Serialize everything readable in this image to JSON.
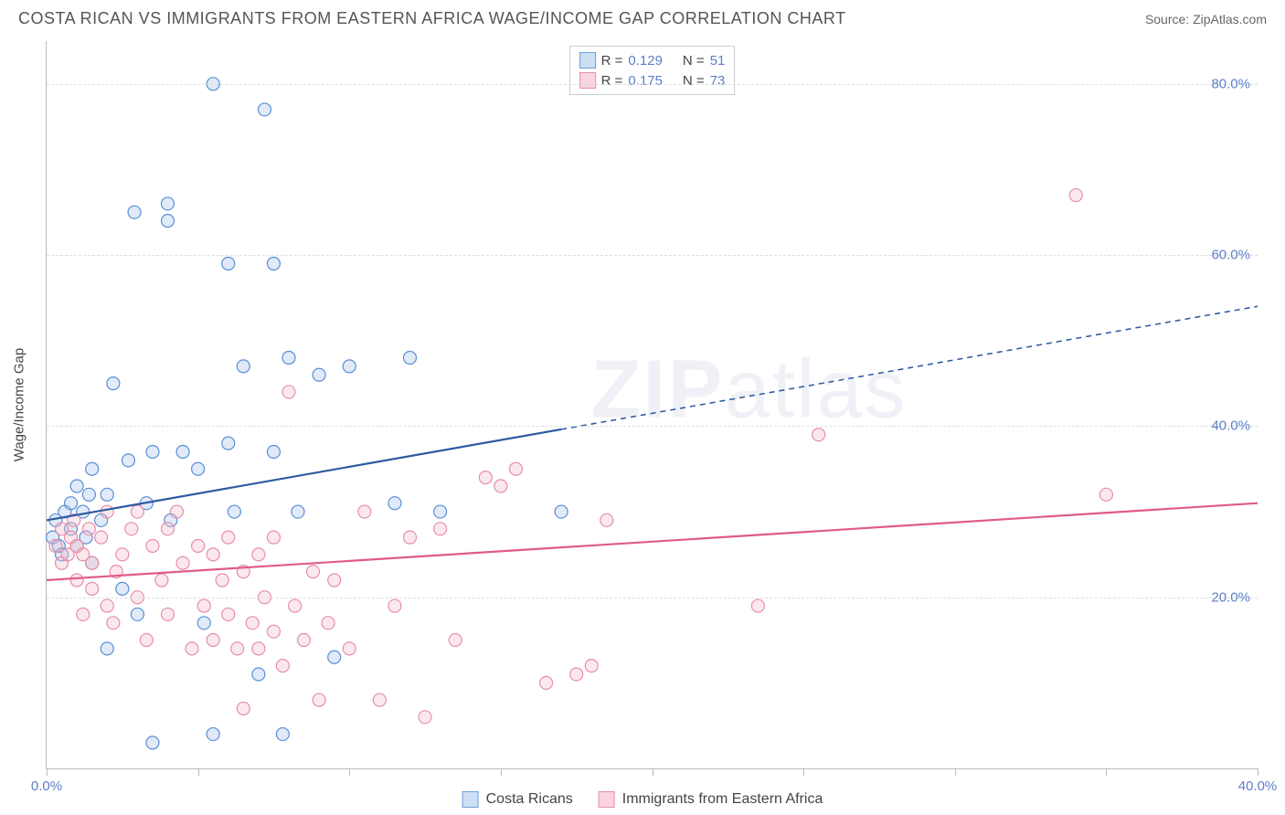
{
  "header": {
    "title": "COSTA RICAN VS IMMIGRANTS FROM EASTERN AFRICA WAGE/INCOME GAP CORRELATION CHART",
    "source_label": "Source: ",
    "source_value": "ZipAtlas.com"
  },
  "watermark": {
    "bold": "ZIP",
    "thin": "atlas"
  },
  "chart": {
    "type": "scatter",
    "y_axis_label": "Wage/Income Gap",
    "xlim": [
      0,
      40
    ],
    "ylim": [
      0,
      85
    ],
    "x_ticks": [
      0,
      5,
      10,
      15,
      20,
      25,
      30,
      35,
      40
    ],
    "x_tick_labels": {
      "0": "0.0%",
      "40": "40.0%"
    },
    "y_gridlines": [
      20,
      40,
      60,
      80
    ],
    "y_tick_labels": {
      "20": "20.0%",
      "40": "40.0%",
      "60": "60.0%",
      "80": "80.0%"
    },
    "background_color": "#ffffff",
    "grid_color": "#dddddd",
    "axis_color": "#bbbbbb",
    "marker_radius": 7,
    "marker_stroke_width": 1.2,
    "marker_fill_opacity": 0.35,
    "series": [
      {
        "id": "costa_ricans",
        "label": "Costa Ricans",
        "color_stroke": "#5b8fd6",
        "color_fill": "#a7c4ea",
        "swatch_fill": "#cddff4",
        "swatch_border": "#6f9fd8",
        "R": "0.129",
        "N": "51",
        "trend": {
          "x1": 0,
          "y1": 29,
          "x2": 40,
          "y2": 54,
          "solid_until_x": 17,
          "line_color": "#2c5aa0",
          "line_width": 2.2
        },
        "points": [
          [
            0.2,
            27
          ],
          [
            0.3,
            29
          ],
          [
            0.4,
            26
          ],
          [
            0.5,
            25
          ],
          [
            0.6,
            30
          ],
          [
            0.8,
            31
          ],
          [
            0.8,
            28
          ],
          [
            1.0,
            33
          ],
          [
            1.0,
            26
          ],
          [
            1.2,
            30
          ],
          [
            1.3,
            27
          ],
          [
            1.4,
            32
          ],
          [
            1.5,
            24
          ],
          [
            1.5,
            35
          ],
          [
            1.8,
            29
          ],
          [
            2.0,
            14
          ],
          [
            2.0,
            32
          ],
          [
            2.2,
            45
          ],
          [
            2.5,
            21
          ],
          [
            2.7,
            36
          ],
          [
            2.9,
            65
          ],
          [
            3.0,
            18
          ],
          [
            3.3,
            31
          ],
          [
            3.5,
            37
          ],
          [
            3.5,
            3
          ],
          [
            4.0,
            64
          ],
          [
            4.0,
            66
          ],
          [
            4.1,
            29
          ],
          [
            4.5,
            37
          ],
          [
            5.0,
            35
          ],
          [
            5.2,
            17
          ],
          [
            5.5,
            80
          ],
          [
            5.5,
            4
          ],
          [
            6.0,
            38
          ],
          [
            6.0,
            59
          ],
          [
            6.2,
            30
          ],
          [
            6.5,
            47
          ],
          [
            7.0,
            11
          ],
          [
            7.2,
            77
          ],
          [
            7.5,
            37
          ],
          [
            7.8,
            4
          ],
          [
            7.5,
            59
          ],
          [
            8.0,
            48
          ],
          [
            8.3,
            30
          ],
          [
            9.0,
            46
          ],
          [
            9.5,
            13
          ],
          [
            10.0,
            47
          ],
          [
            11.5,
            31
          ],
          [
            12.0,
            48
          ],
          [
            13.0,
            30
          ],
          [
            17.0,
            30
          ]
        ]
      },
      {
        "id": "immigrants_ea",
        "label": "Immigrants from Eastern Africa",
        "color_stroke": "#e68fa8",
        "color_fill": "#f3bccc",
        "swatch_fill": "#f9d4de",
        "swatch_border": "#e68fa8",
        "R": "0.175",
        "N": "73",
        "trend": {
          "x1": 0,
          "y1": 22,
          "x2": 40,
          "y2": 31,
          "solid_until_x": 40,
          "line_color": "#e05a8a",
          "line_width": 2.2
        },
        "points": [
          [
            0.3,
            26
          ],
          [
            0.5,
            24
          ],
          [
            0.5,
            28
          ],
          [
            0.7,
            25
          ],
          [
            0.8,
            27
          ],
          [
            0.9,
            29
          ],
          [
            1.0,
            22
          ],
          [
            1.0,
            26
          ],
          [
            1.2,
            25
          ],
          [
            1.4,
            28
          ],
          [
            1.5,
            21
          ],
          [
            1.5,
            24
          ],
          [
            1.8,
            27
          ],
          [
            2.0,
            30
          ],
          [
            2.0,
            19
          ],
          [
            2.3,
            23
          ],
          [
            2.5,
            25
          ],
          [
            2.8,
            28
          ],
          [
            3.0,
            20
          ],
          [
            3.0,
            30
          ],
          [
            3.3,
            15
          ],
          [
            3.5,
            26
          ],
          [
            3.8,
            22
          ],
          [
            4.0,
            28
          ],
          [
            4.0,
            18
          ],
          [
            4.3,
            30
          ],
          [
            4.5,
            24
          ],
          [
            4.8,
            14
          ],
          [
            5.0,
            26
          ],
          [
            5.2,
            19
          ],
          [
            5.5,
            25
          ],
          [
            5.5,
            15
          ],
          [
            5.8,
            22
          ],
          [
            6.0,
            27
          ],
          [
            6.0,
            18
          ],
          [
            6.3,
            14
          ],
          [
            6.5,
            23
          ],
          [
            6.5,
            7
          ],
          [
            6.8,
            17
          ],
          [
            7.0,
            25
          ],
          [
            7.0,
            14
          ],
          [
            7.2,
            20
          ],
          [
            7.5,
            16
          ],
          [
            7.5,
            27
          ],
          [
            7.8,
            12
          ],
          [
            8.0,
            44
          ],
          [
            8.2,
            19
          ],
          [
            8.5,
            15
          ],
          [
            8.8,
            23
          ],
          [
            9.0,
            8
          ],
          [
            9.3,
            17
          ],
          [
            9.5,
            22
          ],
          [
            10.0,
            14
          ],
          [
            10.5,
            30
          ],
          [
            11.0,
            8
          ],
          [
            11.5,
            19
          ],
          [
            12.0,
            27
          ],
          [
            12.5,
            6
          ],
          [
            13.0,
            28
          ],
          [
            13.5,
            15
          ],
          [
            14.5,
            34
          ],
          [
            15.0,
            33
          ],
          [
            15.5,
            35
          ],
          [
            16.5,
            10
          ],
          [
            17.5,
            11
          ],
          [
            18.0,
            12
          ],
          [
            18.5,
            29
          ],
          [
            23.5,
            19
          ],
          [
            25.5,
            39
          ],
          [
            34.0,
            67
          ],
          [
            35.0,
            32
          ],
          [
            1.2,
            18
          ],
          [
            2.2,
            17
          ]
        ]
      }
    ]
  },
  "legend_top": {
    "R_label": "R =",
    "N_label": "N ="
  },
  "legend_bottom": {
    "items": [
      {
        "series": 0
      },
      {
        "series": 1
      }
    ]
  }
}
